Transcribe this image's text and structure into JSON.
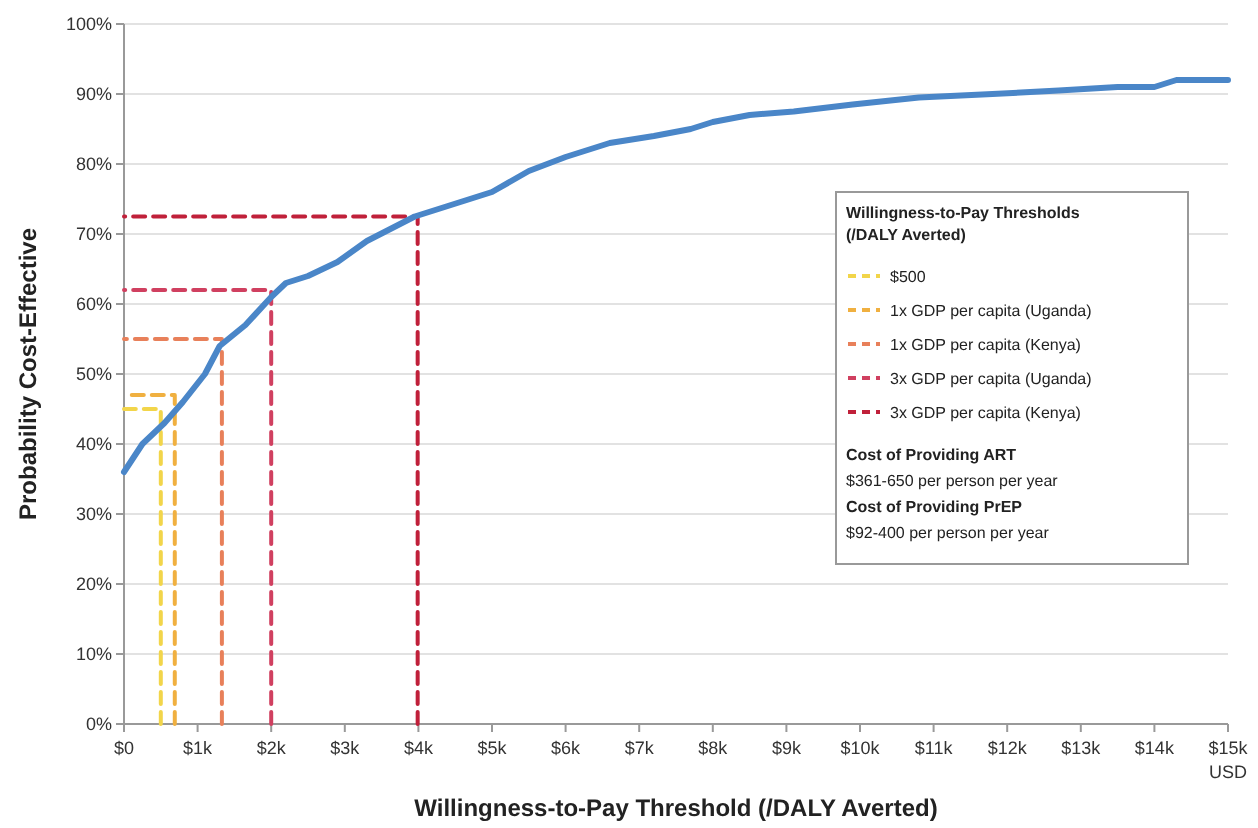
{
  "chart_data": {
    "type": "line",
    "xlabel": "Willingness-to-Pay Threshold (/DALY Averted)",
    "ylabel": "Probability Cost-Effective",
    "legend_title": "Willingness-to-Pay Thresholds (/DALY Averted)",
    "legend": "right",
    "grid": "y",
    "xlim": [
      0,
      15000
    ],
    "ylim": [
      0,
      100
    ],
    "xticks": [
      {
        "value": 0,
        "label": "$0"
      },
      {
        "value": 1000,
        "label": "$1k"
      },
      {
        "value": 2000,
        "label": "$2k"
      },
      {
        "value": 3000,
        "label": "$3k"
      },
      {
        "value": 4000,
        "label": "$4k"
      },
      {
        "value": 5000,
        "label": "$5k"
      },
      {
        "value": 6000,
        "label": "$6k"
      },
      {
        "value": 7000,
        "label": "$7k"
      },
      {
        "value": 8000,
        "label": "$8k"
      },
      {
        "value": 9000,
        "label": "$9k"
      },
      {
        "value": 10000,
        "label": "$10k"
      },
      {
        "value": 11000,
        "label": "$11k"
      },
      {
        "value": 12000,
        "label": "$12k"
      },
      {
        "value": 13000,
        "label": "$13k"
      },
      {
        "value": 14000,
        "label": "$14k"
      },
      {
        "value": 15000,
        "label": "$15k"
      }
    ],
    "yticks": [
      {
        "value": 0,
        "label": "0%"
      },
      {
        "value": 10,
        "label": "10%"
      },
      {
        "value": 20,
        "label": "20%"
      },
      {
        "value": 30,
        "label": "30%"
      },
      {
        "value": 40,
        "label": "40%"
      },
      {
        "value": 50,
        "label": "50%"
      },
      {
        "value": 60,
        "label": "60%"
      },
      {
        "value": 70,
        "label": "70%"
      },
      {
        "value": 80,
        "label": "80%"
      },
      {
        "value": 90,
        "label": "90%"
      },
      {
        "value": 100,
        "label": "100%"
      }
    ],
    "annotations": [
      "USD",
      "Cost of Providing ART",
      "$361-650 per person per year",
      "Cost of Providing PrEP",
      "$92-400 per person per year"
    ],
    "series": [
      {
        "color": "#4a86c8",
        "line_style": "solid",
        "x": [
          0,
          250,
          550,
          800,
          1100,
          1300,
          1650,
          2000,
          2200,
          2500,
          2900,
          3300,
          3950,
          4400,
          5000,
          5500,
          6000,
          6600,
          7200,
          7700,
          8000,
          8500,
          9100,
          9900,
          10800,
          11800,
          12700,
          13500,
          14000,
          14300,
          15000
        ],
        "values": [
          36,
          40,
          43,
          46,
          50,
          54,
          57,
          61,
          63,
          64,
          66,
          69,
          72.5,
          74,
          76,
          79,
          81,
          83,
          84,
          85,
          86,
          87,
          87.5,
          88.5,
          89.5,
          90,
          90.5,
          91,
          91,
          92,
          92
        ]
      },
      {
        "name": "$500",
        "color": "#f2d54a",
        "line_style": "dashed",
        "x": [
          500,
          500,
          0
        ],
        "values": [
          0,
          45,
          45
        ]
      },
      {
        "name": "1x GDP per capita (Uganda)",
        "color": "#f0b040",
        "line_style": "dashed",
        "x": [
          690,
          690,
          0
        ],
        "values": [
          0,
          47,
          47
        ]
      },
      {
        "name": "1x GDP per capita (Kenya)",
        "color": "#e8805a",
        "line_style": "dashed",
        "x": [
          1330,
          1330,
          0
        ],
        "values": [
          0,
          55,
          55
        ]
      },
      {
        "name": "3x GDP per capita (Uganda)",
        "color": "#d04060",
        "line_style": "dashed",
        "x": [
          2000,
          2000,
          0
        ],
        "values": [
          0,
          62,
          62
        ]
      },
      {
        "name": "3x GDP per capita (Kenya)",
        "color": "#c0203a",
        "line_style": "dashed",
        "x": [
          3990,
          3990,
          0
        ],
        "values": [
          0,
          72.5,
          72.5
        ]
      }
    ]
  }
}
